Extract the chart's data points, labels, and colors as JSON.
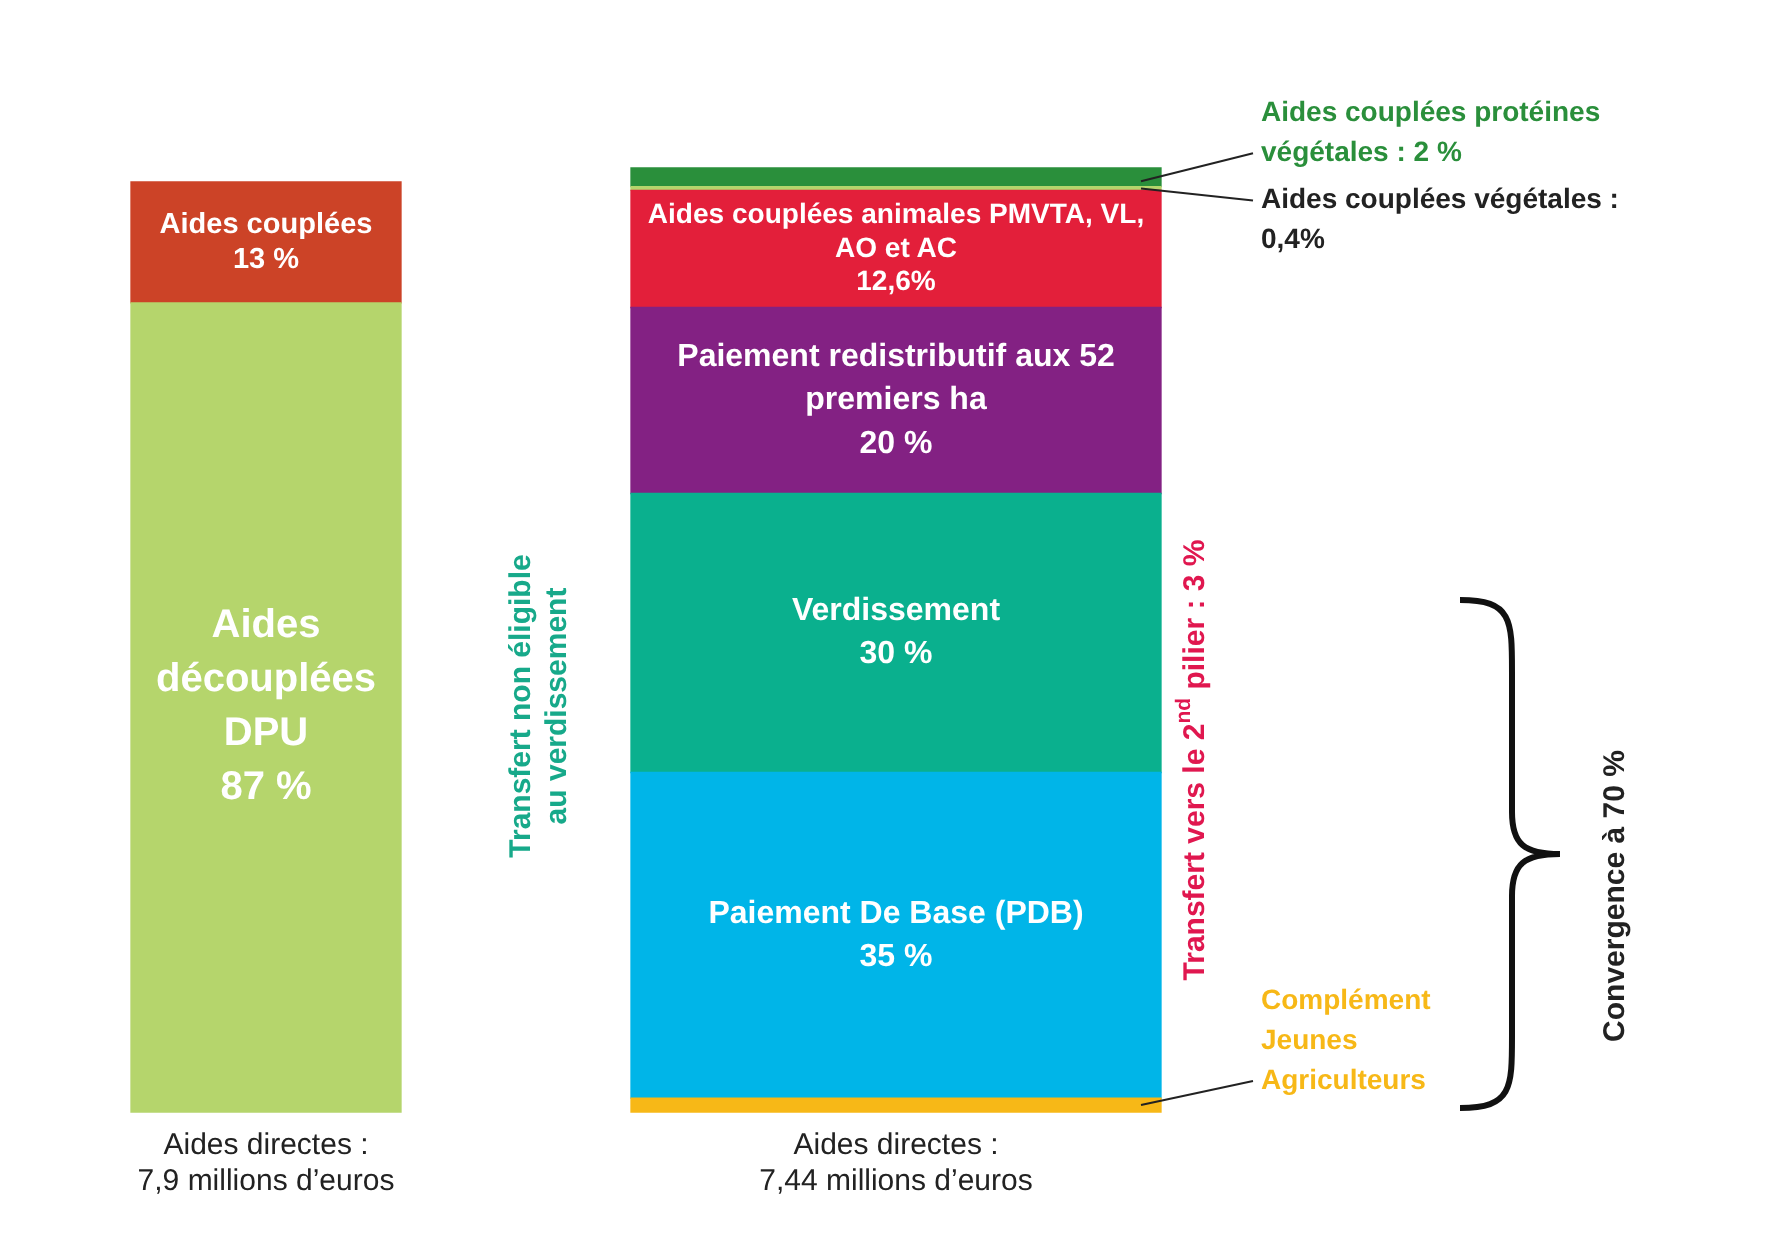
{
  "chart_data": {
    "type": "bar",
    "stacked": true,
    "legend": false,
    "grid": false,
    "tick_labels": "x",
    "data_labels": false,
    "categories": [
      "Aides directes :\n7,9 millions d’euros",
      "Aides directes :\n7,44 millions d’euros"
    ],
    "series": [
      {
        "name": "Aides découplées DPU",
        "color": "#b5d56c",
        "values": [
          87,
          null
        ],
        "value_labels": [
          "87 %",
          null
        ]
      },
      {
        "name": "Aides couplées",
        "color": "#cc4327",
        "values": [
          13,
          null
        ],
        "value_labels": [
          "13 %",
          null
        ]
      },
      {
        "name": "Complément Jeunes Agriculteurs",
        "color": "#f7b817",
        "values": [
          null,
          1.5
        ],
        "value_labels": [
          null,
          null
        ]
      },
      {
        "name": "Paiement De Base (PDB)",
        "color": "#00b5e8",
        "values": [
          null,
          35
        ],
        "value_labels": [
          null,
          "35 %"
        ]
      },
      {
        "name": "Verdissement",
        "color": "#0ab08e",
        "values": [
          null,
          30
        ],
        "value_labels": [
          null,
          "30 %"
        ]
      },
      {
        "name": "Paiement redistributif aux 52 premiers ha",
        "color": "#832183",
        "values": [
          null,
          20
        ],
        "value_labels": [
          null,
          "20 %"
        ]
      },
      {
        "name": "Aides couplées animales PMVTA, VL, AO et AC",
        "color": "#e31f3a",
        "values": [
          null,
          12.6
        ],
        "value_labels": [
          null,
          "12,6%"
        ]
      },
      {
        "name": "Aides couplées végétales :",
        "color": "#b5d56c",
        "values": [
          null,
          0.4
        ],
        "value_labels": [
          null,
          "0,4%"
        ]
      },
      {
        "name": "Aides couplées protéines végétales :",
        "color": "#2a8f3b",
        "values": [
          null,
          2
        ],
        "value_labels": [
          null,
          "2 %"
        ]
      }
    ],
    "annotations": [
      "Transfert non éligible au verdissement",
      "Transfert vers le 2$^{nd}$ pilier : 3 %",
      "Convergence à 70 %"
    ]
  }
}
